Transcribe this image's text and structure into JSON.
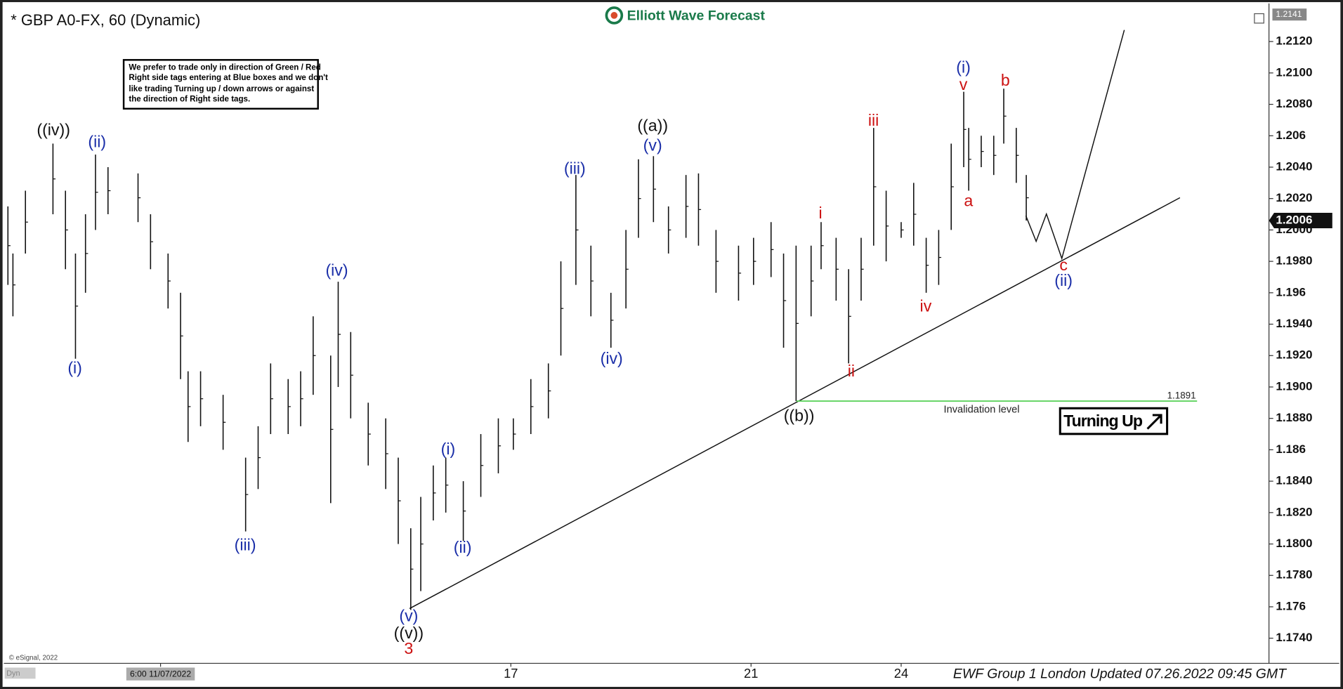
{
  "chart_data": {
    "type": "high-low",
    "title": "* GBP A0-FX, 60 (Dynamic)",
    "logo": "Elliott Wave Forecast",
    "note": [
      "We prefer to trade only in direction of Green / Red",
      "Right side tags entering at Blue boxes and we don't",
      "like trading Turning up / down arrows or against",
      "the direction of Right side tags."
    ],
    "footer": "EWF Group 1 London Updated 07.26.2022 09:45 GMT",
    "copyright": "© eSignal, 2022",
    "corner_label": "Dyn",
    "color": "#111111",
    "x": [
      3,
      5,
      10,
      21,
      26,
      30,
      34,
      38,
      43,
      55,
      60,
      67,
      72,
      75,
      80,
      89,
      98,
      103,
      108,
      115,
      120,
      125,
      132,
      135,
      140,
      147,
      154,
      159,
      164,
      168,
      173,
      178,
      185,
      192,
      199,
      205,
      212,
      219,
      224,
      230,
      236,
      244,
      250,
      255,
      261,
      267,
      274,
      279,
      286,
      295,
      301,
      308,
      313,
      318,
      324,
      328,
      334,
      339,
      344,
      349,
      354,
      360,
      365,
      370,
      375,
      380,
      385,
      387,
      392,
      397,
      401,
      406,
      410
    ],
    "high": [
      1.2015,
      1.1985,
      1.2025,
      1.2055,
      1.2025,
      1.1985,
      1.201,
      1.2048,
      1.204,
      1.2036,
      1.201,
      1.1985,
      1.196,
      1.191,
      1.191,
      1.1895,
      1.1855,
      1.1875,
      1.1915,
      1.1905,
      1.191,
      1.1945,
      1.192,
      1.1967,
      1.1935,
      1.189,
      1.188,
      1.1855,
      1.181,
      1.183,
      1.185,
      1.1855,
      1.184,
      1.187,
      1.188,
      1.188,
      1.1905,
      1.1915,
      1.198,
      1.2035,
      1.199,
      1.196,
      1.2,
      1.2045,
      1.2047,
      1.2015,
      1.2035,
      1.2036,
      1.2,
      1.199,
      1.1995,
      1.2005,
      1.1985,
      1.199,
      1.199,
      1.2005,
      1.1995,
      1.1975,
      1.1995,
      1.2065,
      1.2025,
      1.2005,
      1.203,
      1.1995,
      1.2,
      1.2055,
      1.2088,
      1.2065,
      1.206,
      1.206,
      1.209,
      1.2065,
      1.2035
    ],
    "low": [
      1.1965,
      1.1945,
      1.1985,
      1.201,
      1.1975,
      1.1918,
      1.196,
      1.2,
      1.201,
      1.2005,
      1.1975,
      1.195,
      1.1905,
      1.1865,
      1.1875,
      1.186,
      1.1808,
      1.1835,
      1.187,
      1.187,
      1.1875,
      1.1895,
      1.1826,
      1.19,
      1.188,
      1.185,
      1.1835,
      1.18,
      1.1758,
      1.177,
      1.1815,
      1.182,
      1.1802,
      1.183,
      1.1845,
      1.186,
      1.187,
      1.188,
      1.192,
      1.1965,
      1.1945,
      1.1925,
      1.195,
      1.1995,
      1.2005,
      1.1985,
      1.1995,
      1.199,
      1.196,
      1.1955,
      1.1965,
      1.197,
      1.1925,
      1.1891,
      1.1945,
      1.1975,
      1.1955,
      1.1915,
      1.1955,
      1.199,
      1.198,
      1.1995,
      1.199,
      1.196,
      1.1965,
      1.2,
      1.204,
      1.2025,
      1.204,
      1.2035,
      1.2055,
      1.203,
      1.2006
    ],
    "xlim": [
      0,
      507
    ],
    "xticks": [
      {
        "value": 64,
        "label": "6:00 11/07/2022"
      },
      {
        "value": 204,
        "label": "17"
      },
      {
        "value": 300,
        "label": "21"
      },
      {
        "value": 360,
        "label": "24"
      }
    ],
    "ylim": [
      1.1724,
      1.2141
    ],
    "yticks": [
      {
        "value": 1.174,
        "label": "1.1740"
      },
      1.176,
      {
        "value": 1.178,
        "label": "1.1780"
      },
      {
        "value": 1.18,
        "label": "1.1800"
      },
      {
        "value": 1.182,
        "label": "1.1820"
      },
      {
        "value": 1.184,
        "label": "1.1840"
      },
      1.186,
      {
        "value": 1.188,
        "label": "1.1880"
      },
      {
        "value": 1.19,
        "label": "1.1900"
      },
      {
        "value": 1.192,
        "label": "1.1920"
      },
      {
        "value": 1.194,
        "label": "1.1940"
      },
      1.196,
      {
        "value": 1.198,
        "label": "1.1980"
      },
      {
        "value": 1.2,
        "label": "1.2000"
      },
      {
        "value": 1.202,
        "label": "1.2020"
      },
      {
        "value": 1.204,
        "label": "1.2040"
      },
      1.206,
      {
        "value": 1.208,
        "label": "1.2080"
      },
      {
        "value": 1.21,
        "label": "1.2100"
      },
      {
        "value": 1.212,
        "label": "1.2120"
      }
    ],
    "last_price": 1.2006,
    "invalidation_level": 1.1891,
    "invalidation_label": "Invalidation level",
    "signal": "Turning Up",
    "waves": [
      {
        "text": "((iv))",
        "color": "#111111"
      },
      {
        "text": "(ii)",
        "color": "#1a2ea8"
      },
      {
        "text": "(i)",
        "color": "#1a2ea8"
      },
      {
        "text": "(iv)",
        "color": "#1a2ea8"
      },
      {
        "text": "(iii)",
        "color": "#1a2ea8"
      },
      {
        "text": "(v)",
        "color": "#1a2ea8"
      },
      {
        "text": "((v))",
        "color": "#111111"
      },
      {
        "text": "3",
        "color": "#cc1111"
      },
      {
        "text": "(i)",
        "color": "#1a2ea8"
      },
      {
        "text": "(ii)",
        "color": "#1a2ea8"
      },
      {
        "text": "(iii)",
        "color": "#1a2ea8"
      },
      {
        "text": "(iv)",
        "color": "#1a2ea8"
      },
      {
        "text": "(v)",
        "color": "#1a2ea8"
      },
      {
        "text": "((a))",
        "color": "#111111"
      },
      {
        "text": "((b))",
        "color": "#111111"
      },
      {
        "text": "i",
        "color": "#cc1111"
      },
      {
        "text": "ii",
        "color": "#cc1111"
      },
      {
        "text": "iii",
        "color": "#cc1111"
      },
      {
        "text": "iv",
        "color": "#cc1111"
      },
      {
        "text": "v",
        "color": "#cc1111"
      },
      {
        "text": "(i)",
        "color": "#1a2ea8"
      },
      {
        "text": "a",
        "color": "#cc1111"
      },
      {
        "text": "b",
        "color": "#cc1111"
      },
      {
        "text": "c",
        "color": "#cc1111"
      },
      {
        "text": "(ii)",
        "color": "#1a2ea8"
      }
    ]
  }
}
